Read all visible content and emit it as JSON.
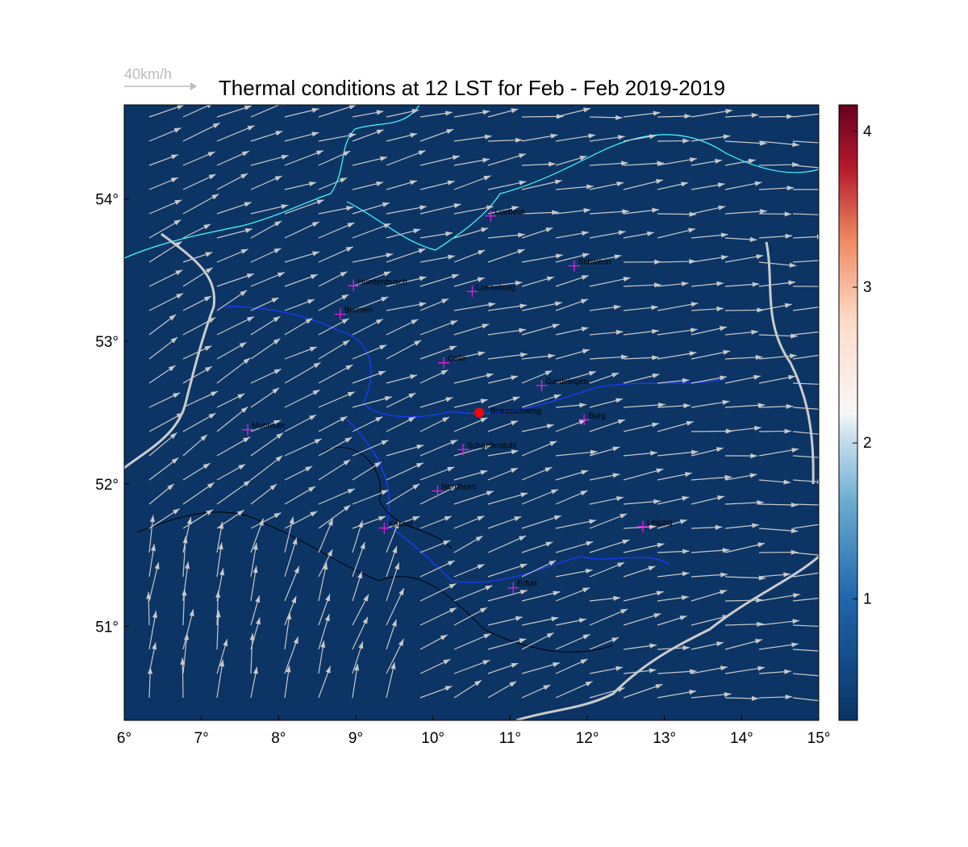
{
  "chart_data": {
    "type": "map",
    "title": "Thermal conditions at 12 LST for Feb - Feb  2019-2019",
    "scale_label": "40km/h",
    "background": "#0c3565",
    "xlim": [
      6,
      15
    ],
    "ylim": [
      50.34,
      54.66
    ],
    "xticks": [
      {
        "value": 6,
        "label": "6°"
      },
      {
        "value": 7,
        "label": "7°"
      },
      {
        "value": 8,
        "label": "8°"
      },
      {
        "value": 9,
        "label": "9°"
      },
      {
        "value": 10,
        "label": "10°"
      },
      {
        "value": 11,
        "label": "11°"
      },
      {
        "value": 12,
        "label": "12°"
      },
      {
        "value": 13,
        "label": "13°"
      },
      {
        "value": 14,
        "label": "14°"
      },
      {
        "value": 15,
        "label": "15°"
      }
    ],
    "yticks": [
      {
        "value": 51,
        "label": "51°"
      },
      {
        "value": 52,
        "label": "52°"
      },
      {
        "value": 53,
        "label": "53°"
      },
      {
        "value": 54,
        "label": "54°"
      }
    ],
    "colorbar": {
      "lim": [
        0.22,
        4.17
      ],
      "ticks": [
        1,
        2,
        3,
        4
      ]
    },
    "cities": [
      {
        "name": "Luebeck",
        "lon": 10.75,
        "lat": 53.88
      },
      {
        "name": "Schwerin",
        "lon": 11.83,
        "lat": 53.53
      },
      {
        "name": "Huettenbusch",
        "lon": 8.97,
        "lat": 53.39
      },
      {
        "name": "Lueneburg",
        "lon": 10.51,
        "lat": 53.35
      },
      {
        "name": "Bremen",
        "lon": 8.8,
        "lat": 53.19
      },
      {
        "name": "Celle",
        "lon": 10.14,
        "lat": 52.85
      },
      {
        "name": "Gardelegen",
        "lon": 11.41,
        "lat": 52.69
      },
      {
        "name": "Burg",
        "lon": 11.96,
        "lat": 52.45
      },
      {
        "name": "Muenster",
        "lon": 7.6,
        "lat": 52.38
      },
      {
        "name": "Schaeferstuhl",
        "lon": 10.39,
        "lat": 52.24
      },
      {
        "name": "Nordheim",
        "lon": 10.06,
        "lat": 51.95
      },
      {
        "name": "Kassel",
        "lon": 9.37,
        "lat": 51.69
      },
      {
        "name": "Leipzig",
        "lon": 12.72,
        "lat": 51.7
      },
      {
        "name": "Erfurt",
        "lon": 11.04,
        "lat": 51.27
      }
    ],
    "site": {
      "name": "Braunschweig",
      "lon": 10.6,
      "lat": 52.5,
      "color": "#ff0000"
    }
  }
}
